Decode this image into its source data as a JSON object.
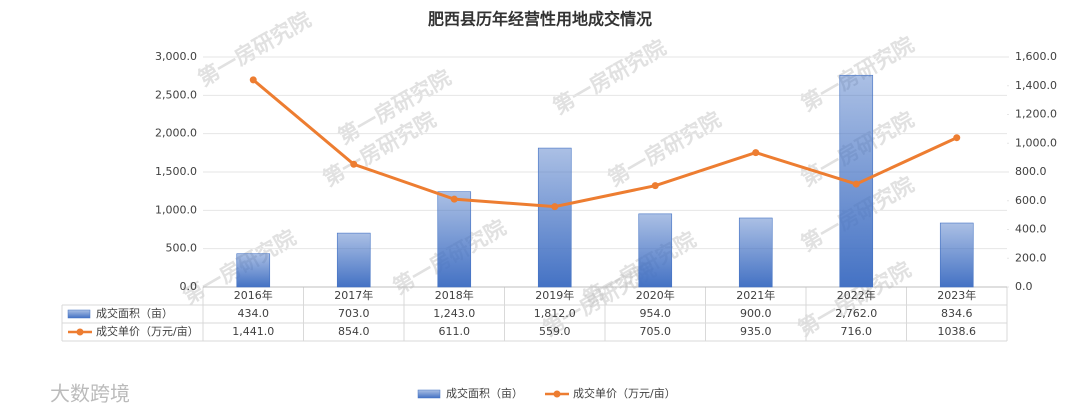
{
  "chart_data": {
    "type": "bar",
    "title": "肥西县历年经营性用地成交情况",
    "categories": [
      "2016年",
      "2017年",
      "2018年",
      "2019年",
      "2020年",
      "2021年",
      "2022年",
      "2023年"
    ],
    "series": [
      {
        "name": "成交面积（亩）",
        "type": "bar",
        "color": "#4472c4",
        "values": [
          434.0,
          703.0,
          1243.0,
          1812.0,
          954.0,
          900.0,
          2762.0,
          834.6
        ],
        "value_labels": [
          "434.0",
          "703.0",
          "1,243.0",
          "1,812.0",
          "954.0",
          "900.0",
          "2,762.0",
          "834.6"
        ]
      },
      {
        "name": "成交单价（万元/亩）",
        "type": "line",
        "axis": "y2",
        "color": "#ed7d31",
        "values": [
          1441.0,
          854.0,
          611.0,
          559.0,
          705.0,
          935.0,
          716.0,
          1038.6
        ],
        "value_labels": [
          "1,441.0",
          "854.0",
          "611.0",
          "559.0",
          "705.0",
          "935.0",
          "716.0",
          "1038.6"
        ]
      }
    ],
    "ylim": [
      0,
      3000
    ],
    "yticks": [
      {
        "value": 0,
        "label": "0.0"
      },
      {
        "value": 500,
        "label": "500.0"
      },
      {
        "value": 1000,
        "label": "1,000.0"
      },
      {
        "value": 1500,
        "label": "1,500.0"
      },
      {
        "value": 2000,
        "label": "2,000.0"
      },
      {
        "value": 2500,
        "label": "2,500.0"
      },
      {
        "value": 3000,
        "label": "3,000.0"
      }
    ],
    "y2lim": [
      0,
      1600
    ],
    "y2ticks": [
      {
        "value": 0,
        "label": "0.0"
      },
      {
        "value": 200,
        "label": "200.0"
      },
      {
        "value": 400,
        "label": "400.0"
      },
      {
        "value": 600,
        "label": "600.0"
      },
      {
        "value": 800,
        "label": "800.0"
      },
      {
        "value": 1000,
        "label": "1,000.0"
      },
      {
        "value": 1200,
        "label": "1,200.0"
      },
      {
        "value": 1400,
        "label": "1,400.0"
      },
      {
        "value": 1600,
        "label": "1,600.0"
      }
    ],
    "grid": true,
    "legend": "bottom",
    "watermark": "第一房研究院",
    "logo": "大数跨境"
  }
}
